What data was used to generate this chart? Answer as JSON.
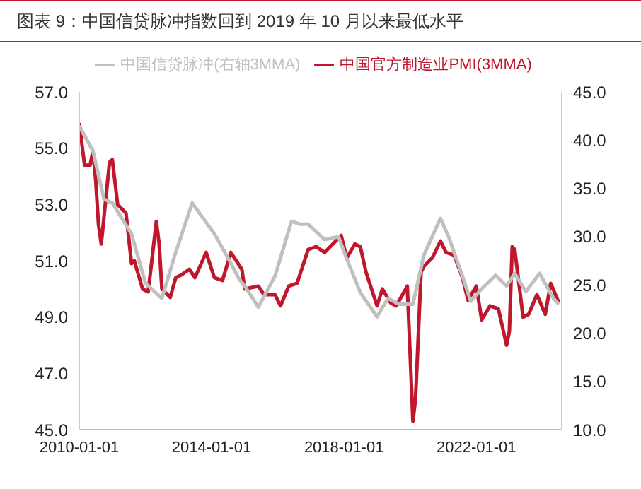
{
  "chart_data": {
    "type": "line",
    "title": "图表 9：中国信贷脉冲指数回到 2019 年 10 月以来最低水平",
    "xlim": [
      "2010-01-01",
      "2024-08"
    ],
    "xticks": [
      "2010-01-01",
      "2014-01-01",
      "2018-01-01",
      "2022-01-01"
    ],
    "ylim": [
      45,
      57
    ],
    "yticks": [
      {
        "value": 45,
        "label": "45.0"
      },
      {
        "value": 47,
        "label": "47.0"
      },
      {
        "value": 49,
        "label": "49.0"
      },
      {
        "value": 51,
        "label": "51.0"
      },
      {
        "value": 53,
        "label": "53.0"
      },
      {
        "value": 55,
        "label": "55.0"
      },
      {
        "value": 57,
        "label": "57.0"
      }
    ],
    "y2lim": [
      10,
      45
    ],
    "y2ticks": [
      {
        "value": 10,
        "label": "10.0"
      },
      {
        "value": 15,
        "label": "15.0"
      },
      {
        "value": 20,
        "label": "20.0"
      },
      {
        "value": 25,
        "label": "25.0"
      },
      {
        "value": 30,
        "label": "30.0"
      },
      {
        "value": 35,
        "label": "35.0"
      },
      {
        "value": 40,
        "label": "40.0"
      },
      {
        "value": 45,
        "label": "45.0"
      }
    ],
    "grid": false,
    "legend": "top",
    "marker": "none",
    "line_style": "solid",
    "series": [
      {
        "name": "中国官方制造业PMI(3MMA)",
        "color": "#c0172c",
        "x": [
          "2010-01",
          "2010-03",
          "2010-05",
          "2010-06",
          "2010-07",
          "2010-08",
          "2010-09",
          "2010-12",
          "2011-01",
          "2011-03",
          "2011-06",
          "2011-08",
          "2011-09",
          "2011-12",
          "2012-02",
          "2012-05",
          "2012-06",
          "2012-07",
          "2012-10",
          "2012-12",
          "2013-02",
          "2013-05",
          "2013-07",
          "2013-11",
          "2014-02",
          "2014-05",
          "2014-08",
          "2014-12",
          "2015-01",
          "2015-06",
          "2015-08",
          "2015-12",
          "2016-02",
          "2016-05",
          "2016-08",
          "2016-12",
          "2017-03",
          "2017-06",
          "2017-10",
          "2017-12",
          "2018-02",
          "2018-05",
          "2018-07",
          "2018-09",
          "2019-01",
          "2019-03",
          "2019-06",
          "2019-08",
          "2019-12",
          "2020-02",
          "2020-03",
          "2020-05",
          "2020-06",
          "2020-09",
          "2020-12",
          "2021-02",
          "2021-05",
          "2021-08",
          "2021-10",
          "2022-01",
          "2022-03",
          "2022-06",
          "2022-09",
          "2022-12",
          "2023-01",
          "2023-02",
          "2023-03",
          "2023-06",
          "2023-08",
          "2023-11",
          "2024-02",
          "2024-04",
          "2024-07"
        ],
        "values": [
          55.9,
          54.4,
          54.4,
          54.9,
          53.9,
          52.3,
          51.6,
          54.5,
          54.6,
          53.0,
          52.7,
          50.9,
          51.0,
          50.0,
          49.9,
          52.4,
          51.6,
          50.0,
          49.7,
          50.4,
          50.5,
          50.7,
          50.4,
          51.3,
          50.4,
          50.3,
          51.3,
          50.7,
          50.0,
          50.1,
          49.8,
          49.8,
          49.4,
          50.1,
          50.2,
          51.4,
          51.5,
          51.3,
          51.7,
          51.9,
          51.1,
          51.6,
          51.5,
          50.6,
          49.4,
          50.0,
          49.5,
          49.4,
          50.1,
          45.3,
          46.1,
          50.6,
          50.8,
          51.1,
          51.7,
          51.3,
          51.2,
          50.4,
          49.6,
          50.1,
          48.9,
          49.4,
          49.3,
          48.0,
          48.5,
          51.5,
          51.4,
          49.0,
          49.1,
          49.8,
          49.1,
          50.2,
          49.5
        ]
      },
      {
        "name": "中国信贷脉冲(右轴3MMA)",
        "color": "#c0c0c0",
        "axis": "y2",
        "x": [
          "2010-01",
          "2010-06",
          "2010-10",
          "2011-01",
          "2011-08",
          "2012-01",
          "2012-07",
          "2012-12",
          "2013-06",
          "2014-02",
          "2014-07",
          "2014-11",
          "2015-01",
          "2015-06",
          "2015-12",
          "2016-06",
          "2016-09",
          "2016-12",
          "2017-06",
          "2017-11",
          "2018-02",
          "2018-07",
          "2019-01",
          "2019-05",
          "2019-09",
          "2020-02",
          "2020-06",
          "2020-12",
          "2021-03",
          "2021-08",
          "2021-11",
          "2022-03",
          "2022-08",
          "2022-12",
          "2023-03",
          "2023-07",
          "2023-12",
          "2024-05",
          "2024-07"
        ],
        "values": [
          41.5,
          38.9,
          33.9,
          33.5,
          30.3,
          25.2,
          23.6,
          28.4,
          33.5,
          30.3,
          27.8,
          25.6,
          24.9,
          22.7,
          25.9,
          31.6,
          31.3,
          31.3,
          29.7,
          30.0,
          27.7,
          24.2,
          21.7,
          23.6,
          23.0,
          23.0,
          28.1,
          31.9,
          30.0,
          25.9,
          23.3,
          24.6,
          26.0,
          24.9,
          26.2,
          24.3,
          26.2,
          23.6,
          23.0
        ]
      }
    ]
  }
}
